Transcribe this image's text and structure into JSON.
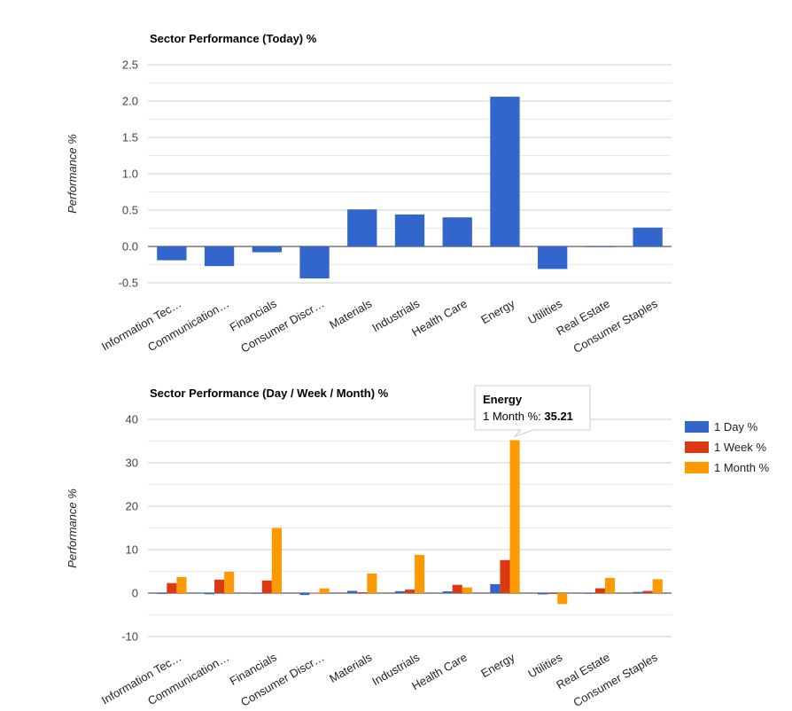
{
  "chart_data": [
    {
      "type": "bar",
      "title": "Sector Performance (Today) %",
      "ylabel": "Performance %",
      "xlabel": "",
      "ylim": [
        -0.5,
        2.5
      ],
      "yticks": [
        2.5,
        2.0,
        1.5,
        1.0,
        0.5,
        0.0,
        -0.5
      ],
      "ytick_labels": [
        "2.5",
        "2.0",
        "1.5",
        "1.0",
        "0.5",
        "0.0",
        "-0.5"
      ],
      "grid": true,
      "categories": [
        "Information Tec…",
        "Communication…",
        "Financials",
        "Consumer Discr…",
        "Materials",
        "Industrials",
        "Health Care",
        "Energy",
        "Utilities",
        "Real Estate",
        "Consumer Staples"
      ],
      "series": [
        {
          "values": [
            -0.19,
            -0.27,
            -0.08,
            -0.44,
            0.51,
            0.44,
            0.4,
            2.06,
            -0.31,
            -0.01,
            0.26
          ],
          "color": "#3366cc"
        }
      ]
    },
    {
      "type": "bar",
      "title": "Sector Performance (Day / Week / Month) %",
      "ylabel": "Performance %",
      "xlabel": "",
      "ylim": [
        -10,
        40
      ],
      "yticks": [
        40,
        30,
        20,
        10,
        0,
        -10
      ],
      "ytick_labels": [
        "40",
        "30",
        "20",
        "10",
        "0",
        "-10"
      ],
      "grid": true,
      "legend_position": "right",
      "categories": [
        "Information Tec…",
        "Communication…",
        "Financials",
        "Consumer Discr…",
        "Materials",
        "Industrials",
        "Health Care",
        "Energy",
        "Utilities",
        "Real Estate",
        "Consumer Staples"
      ],
      "series": [
        {
          "name": "1 Day %",
          "color": "#3366cc",
          "values": [
            -0.19,
            -0.27,
            -0.08,
            -0.44,
            0.51,
            0.44,
            0.4,
            2.06,
            -0.31,
            -0.01,
            0.26
          ]
        },
        {
          "name": "1 Week %",
          "color": "#dc3912",
          "values": [
            2.3,
            3.1,
            2.9,
            0.1,
            0.2,
            0.8,
            1.9,
            7.6,
            -0.2,
            1.1,
            0.5
          ]
        },
        {
          "name": "1 Month %",
          "color": "#ff9900",
          "values": [
            3.7,
            4.9,
            15.0,
            1.1,
            4.5,
            8.8,
            1.3,
            35.21,
            -2.5,
            3.5,
            3.2
          ]
        }
      ],
      "tooltip": {
        "title": "Energy",
        "series_label": "1 Month %:",
        "value": "35.21"
      }
    }
  ]
}
